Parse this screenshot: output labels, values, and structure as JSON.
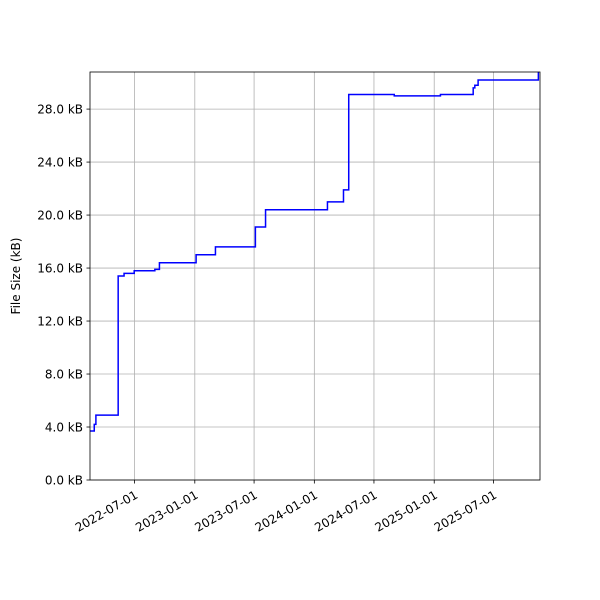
{
  "chart_data": {
    "type": "line",
    "title": "",
    "xlabel": "",
    "ylabel": "File Size (kB)",
    "x_type": "date",
    "xlim": [
      "2022-02-15",
      "2025-11-20"
    ],
    "ylim": [
      0,
      30.8
    ],
    "grid": true,
    "step": true,
    "series": [
      {
        "color": "#0000ff",
        "x": [
          "2022-02-15",
          "2022-02-28",
          "2022-03-05",
          "2022-04-29",
          "2022-05-12",
          "2022-05-30",
          "2022-06-30",
          "2022-09-01",
          "2022-09-15",
          "2022-10-20",
          "2022-11-15",
          "2022-12-30",
          "2023-01-05",
          "2023-02-20",
          "2023-03-05",
          "2023-05-31",
          "2023-07-05",
          "2023-08-05",
          "2023-12-22",
          "2023-12-30",
          "2024-02-10",
          "2024-03-30",
          "2024-04-15",
          "2024-09-01",
          "2024-10-01",
          "2024-11-30",
          "2025-01-20",
          "2025-04-25",
          "2025-04-30",
          "2025-05-05",
          "2025-05-15",
          "2025-08-01",
          "2025-11-15"
        ],
        "y": [
          3.7,
          4.2,
          4.9,
          4.9,
          15.4,
          15.6,
          15.8,
          15.9,
          16.4,
          16.4,
          16.4,
          16.4,
          17.0,
          17.0,
          17.6,
          17.6,
          19.1,
          20.4,
          20.4,
          20.4,
          21.0,
          21.9,
          29.1,
          29.0,
          29.0,
          29.0,
          29.1,
          29.1,
          29.6,
          29.8,
          30.2,
          30.2,
          30.8
        ]
      }
    ],
    "x_tick_labels": [
      "2022-07-01",
      "2023-01-01",
      "2023-07-01",
      "2024-01-01",
      "2024-07-01",
      "2025-01-01",
      "2025-07-01"
    ],
    "y_ticks": [
      0,
      4,
      8,
      12,
      16,
      20,
      24,
      28
    ],
    "y_tick_labels": [
      "0.0 kB",
      "4.0 kB",
      "8.0 kB",
      "12.0 kB",
      "16.0 kB",
      "20.0 kB",
      "24.0 kB",
      "28.0 kB"
    ]
  }
}
